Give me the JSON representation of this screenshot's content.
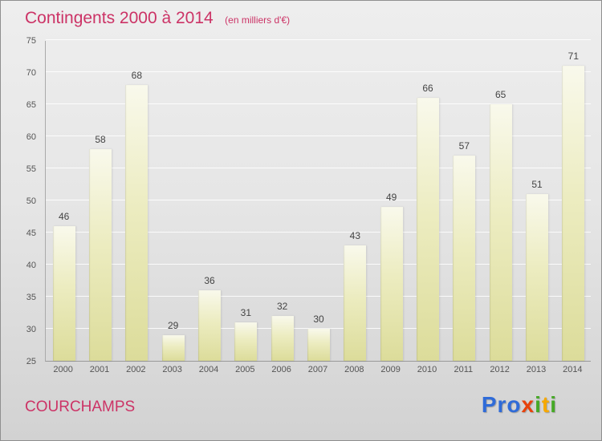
{
  "header": {
    "title": "Contingents 2000 à 2014",
    "subtitle": "(en milliers d'€)"
  },
  "footer": {
    "name": "COURCHAMPS",
    "logo_letters": [
      {
        "char": "P",
        "color": "#2f6bd8"
      },
      {
        "char": "r",
        "color": "#2f6bd8"
      },
      {
        "char": "o",
        "color": "#2f6bd8"
      },
      {
        "char": "x",
        "color": "#e8420b"
      },
      {
        "char": "i",
        "color": "#46a926"
      },
      {
        "char": "t",
        "color": "#f6a800"
      },
      {
        "char": "i",
        "color": "#46a926"
      }
    ]
  },
  "colors": {
    "title_text": "#cc3366",
    "bar_top": "#f9f9ec",
    "bar_bottom": "#dcdc9a",
    "axis_text": "#555555",
    "grid_line": "#ffffff",
    "background_top": "#eeeeee",
    "background_bottom": "#d2d2d2"
  },
  "chart_data": {
    "type": "bar",
    "title": "Contingents 2000 à 2014",
    "subtitle": "(en milliers d'€)",
    "categories": [
      "2000",
      "2001",
      "2002",
      "2003",
      "2004",
      "2005",
      "2006",
      "2007",
      "2008",
      "2009",
      "2010",
      "2011",
      "2012",
      "2013",
      "2014"
    ],
    "values": [
      46,
      58,
      68,
      29,
      36,
      31,
      32,
      30,
      43,
      49,
      66,
      57,
      65,
      51,
      71
    ],
    "xlabel": "",
    "ylabel": "",
    "ylim": [
      25,
      75
    ],
    "ytick_step": 5,
    "grid": true,
    "legend": false,
    "value_labels": true
  }
}
